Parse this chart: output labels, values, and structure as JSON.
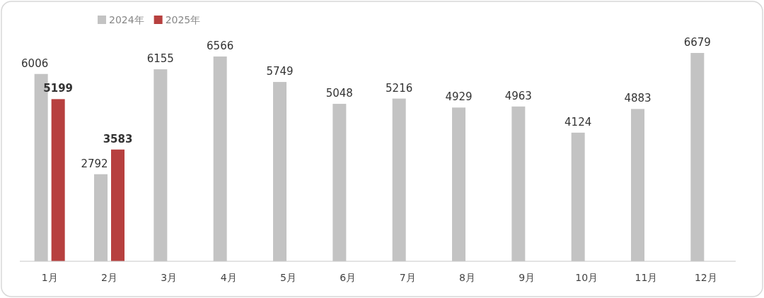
{
  "chart_data": {
    "type": "bar",
    "categories": [
      "1月",
      "2月",
      "3月",
      "4月",
      "5月",
      "6月",
      "7月",
      "8月",
      "9月",
      "10月",
      "11月",
      "12月"
    ],
    "series": [
      {
        "name": "2024年",
        "color": "#c3c3c3",
        "values": [
          6006,
          2792,
          6155,
          6566,
          5749,
          5048,
          5216,
          4929,
          4963,
          4124,
          4883,
          6679
        ]
      },
      {
        "name": "2025年",
        "color": "#b7403f",
        "values": [
          5199,
          3583,
          null,
          null,
          null,
          null,
          null,
          null,
          null,
          null,
          null,
          null
        ]
      }
    ],
    "data_labels": true,
    "legend": "top left"
  }
}
